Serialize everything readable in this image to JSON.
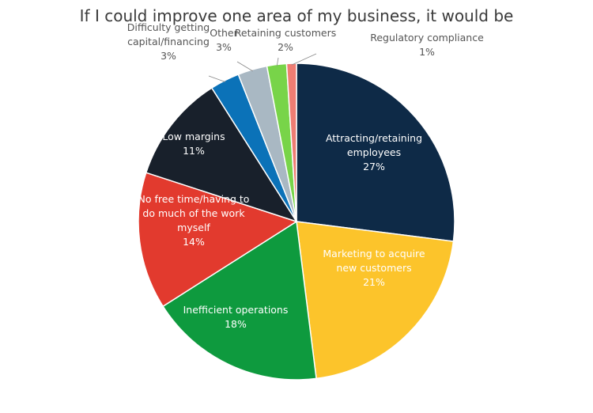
{
  "chart_data": {
    "type": "pie",
    "title": "If I could improve one area of my business, it would be",
    "slices": [
      {
        "label_lines": [
          "Attracting/retaining",
          "employees"
        ],
        "pct_label": "27%",
        "value": 27,
        "color": "#0e2a47",
        "text_color": "#ffffff"
      },
      {
        "label_lines": [
          "Marketing to acquire",
          "new customers"
        ],
        "pct_label": "21%",
        "value": 21,
        "color": "#fcc42b",
        "text_color": "#ffffff"
      },
      {
        "label_lines": [
          "Inefficient operations"
        ],
        "pct_label": "18%",
        "value": 18,
        "color": "#0e9a3e",
        "text_color": "#ffffff"
      },
      {
        "label_lines": [
          "No free time/having to",
          "do much of the work",
          "myself"
        ],
        "pct_label": "14%",
        "value": 14,
        "color": "#e23a2e",
        "text_color": "#ffffff"
      },
      {
        "label_lines": [
          "Low margins"
        ],
        "pct_label": "11%",
        "value": 11,
        "color": "#18202b",
        "text_color": "#ffffff"
      },
      {
        "label_lines": [
          "Difficulty getting",
          "capital/financing"
        ],
        "pct_label": "3%",
        "value": 3,
        "color": "#0b72b8",
        "text_color": "#555555"
      },
      {
        "label_lines": [
          "Other"
        ],
        "pct_label": "3%",
        "value": 3,
        "color": "#a9b8c3",
        "text_color": "#555555"
      },
      {
        "label_lines": [
          "Retaining customers"
        ],
        "pct_label": "2%",
        "value": 2,
        "color": "#78d449",
        "text_color": "#555555"
      },
      {
        "label_lines": [
          "Regulatory compliance"
        ],
        "pct_label": "1%",
        "value": 1,
        "color": "#ef7d73",
        "text_color": "#555555"
      }
    ]
  }
}
